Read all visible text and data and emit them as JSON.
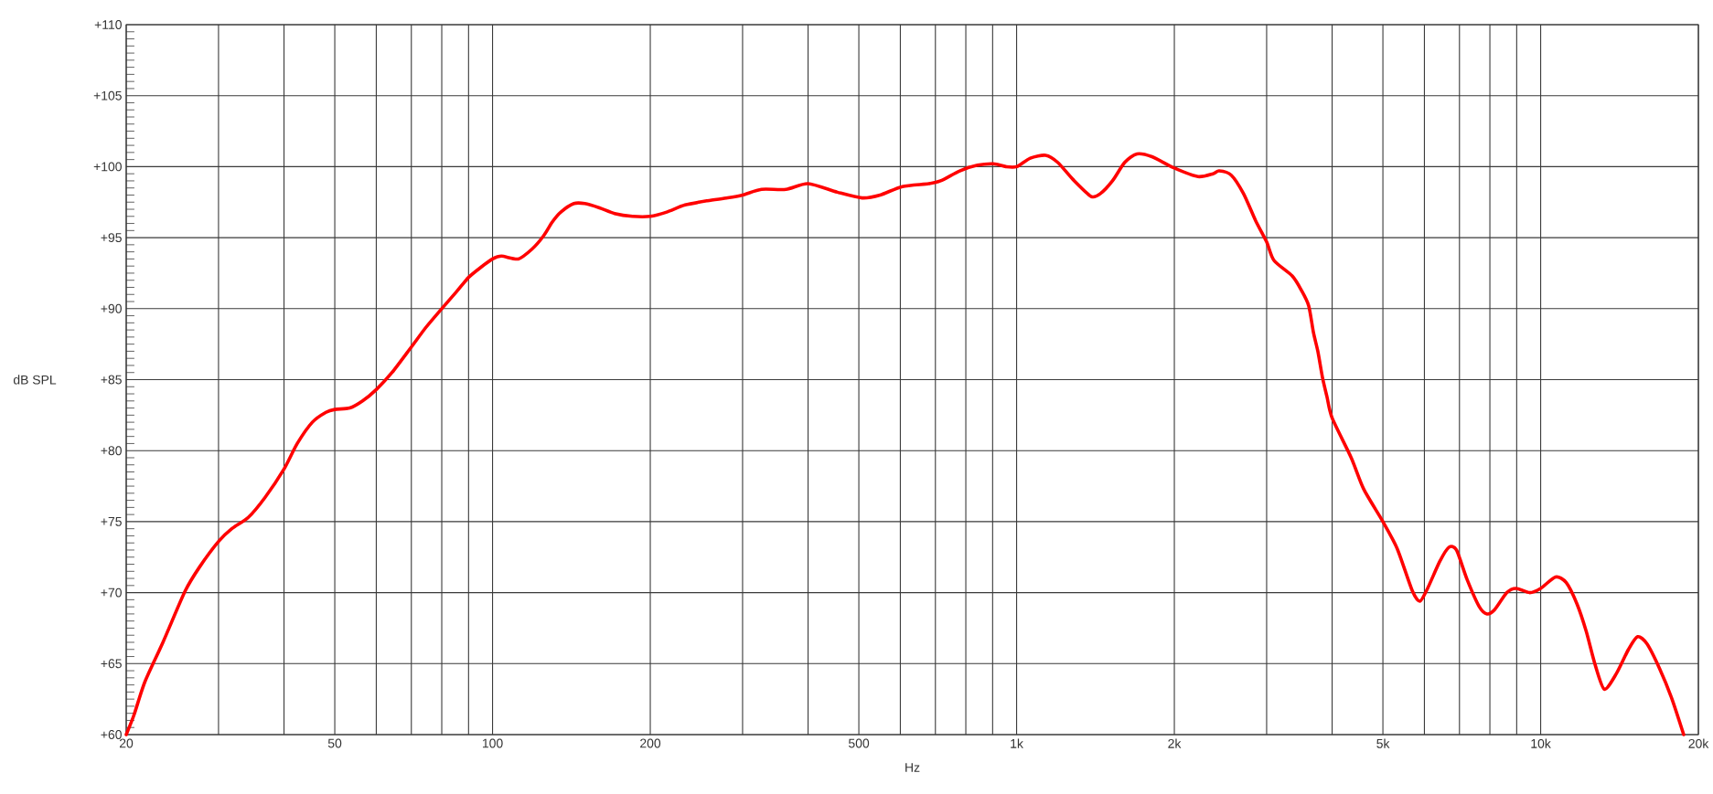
{
  "chart_data": {
    "type": "line",
    "xlabel": "Hz",
    "ylabel": "dB SPL",
    "log": "x",
    "grid": true,
    "color": "#ff0000",
    "xlim": [
      20,
      20000
    ],
    "ylim": [
      60,
      110
    ],
    "xticks": [
      20,
      {
        "value": 30,
        "label": null
      },
      {
        "value": 40,
        "label": null
      },
      50,
      {
        "value": 60,
        "label": null
      },
      {
        "value": 70,
        "label": null
      },
      {
        "value": 80,
        "label": null
      },
      {
        "value": 90,
        "label": null
      },
      100,
      200,
      {
        "value": 300,
        "label": null
      },
      {
        "value": 400,
        "label": null
      },
      500,
      {
        "value": 600,
        "label": null
      },
      {
        "value": 700,
        "label": null
      },
      {
        "value": 800,
        "label": null
      },
      {
        "value": 900,
        "label": null
      },
      {
        "value": 1000,
        "label": "1k"
      },
      {
        "value": 2000,
        "label": "2k"
      },
      {
        "value": 3000,
        "label": null
      },
      {
        "value": 4000,
        "label": null
      },
      {
        "value": 5000,
        "label": "5k"
      },
      {
        "value": 6000,
        "label": null
      },
      {
        "value": 7000,
        "label": null
      },
      {
        "value": 8000,
        "label": null
      },
      {
        "value": 9000,
        "label": null
      },
      {
        "value": 10000,
        "label": "10k"
      },
      {
        "value": 20000,
        "label": "20k"
      }
    ],
    "yticks": [
      {
        "value": 60,
        "label": "+60"
      },
      {
        "value": 65,
        "label": "+65"
      },
      {
        "value": 70,
        "label": "+70"
      },
      {
        "value": 75,
        "label": "+75"
      },
      {
        "value": 80,
        "label": "+80"
      },
      {
        "value": 85,
        "label": "+85"
      },
      {
        "value": 90,
        "label": "+90"
      },
      {
        "value": 95,
        "label": "+95"
      },
      {
        "value": 100,
        "label": "+100"
      },
      {
        "value": 105,
        "label": "+105"
      },
      {
        "value": 110,
        "label": "+110"
      }
    ],
    "x": [
      20,
      20.7,
      21.7,
      23.5,
      25.9,
      27.6,
      30,
      31.8,
      34.2,
      36.8,
      40,
      42.4,
      45.3,
      48.1,
      50,
      53.4,
      56.5,
      60,
      64.3,
      70,
      74.7,
      80,
      85.4,
      90,
      94.9,
      100,
      104,
      112,
      119,
      125,
      130,
      135,
      143,
      150,
      160,
      171,
      185,
      200,
      215,
      233,
      257,
      281,
      300,
      326,
      363,
      400,
      455,
      507,
      549,
      605,
      680,
      716,
      779,
      842,
      904,
      954,
      1000,
      1062,
      1136,
      1198,
      1281,
      1388,
      1445,
      1524,
      1608,
      1697,
      1813,
      2000,
      2218,
      2370,
      2435,
      2568,
      2710,
      2858,
      3000,
      3098,
      3357,
      3494,
      3609,
      3686,
      3757,
      3837,
      3911,
      4000,
      4350,
      4594,
      5000,
      5324,
      5694,
      5886,
      6085,
      6420,
      6685,
      6908,
      7243,
      7639,
      7903,
      8170,
      8620,
      8970,
      9530,
      10000,
      10680,
      11190,
      11730,
      12210,
      12710,
      13230,
      13950,
      14710,
      15310,
      15950,
      16840,
      17770,
      18750
    ],
    "values": [
      60.0,
      61.4,
      63.7,
      66.5,
      70.1,
      71.8,
      73.6,
      74.5,
      75.3,
      76.7,
      78.7,
      80.5,
      82.0,
      82.7,
      82.9,
      83.0,
      83.5,
      84.3,
      85.5,
      87.3,
      88.7,
      90.0,
      91.2,
      92.2,
      92.9,
      93.5,
      93.7,
      93.5,
      94.2,
      95.1,
      96.1,
      96.8,
      97.4,
      97.4,
      97.1,
      96.7,
      96.5,
      96.5,
      96.8,
      97.3,
      97.6,
      97.8,
      98.0,
      98.4,
      98.4,
      98.8,
      98.2,
      97.8,
      98.0,
      98.6,
      98.8,
      99.0,
      99.7,
      100.1,
      100.2,
      100.0,
      100.0,
      100.6,
      100.8,
      100.3,
      99.1,
      97.9,
      98.1,
      99.0,
      100.3,
      100.9,
      100.7,
      99.9,
      99.3,
      99.5,
      99.7,
      99.4,
      98.1,
      96.2,
      94.7,
      93.4,
      92.3,
      91.3,
      90.2,
      88.3,
      87.0,
      85.1,
      83.8,
      82.3,
      79.5,
      77.3,
      75.0,
      73.1,
      70.1,
      69.4,
      70.3,
      72.2,
      73.2,
      73.0,
      70.9,
      69.0,
      68.5,
      68.8,
      70.0,
      70.3,
      70.0,
      70.3,
      71.1,
      70.7,
      69.2,
      67.3,
      64.9,
      63.2,
      64.3,
      66.0,
      66.9,
      66.4,
      64.7,
      62.6,
      60.0
    ]
  }
}
